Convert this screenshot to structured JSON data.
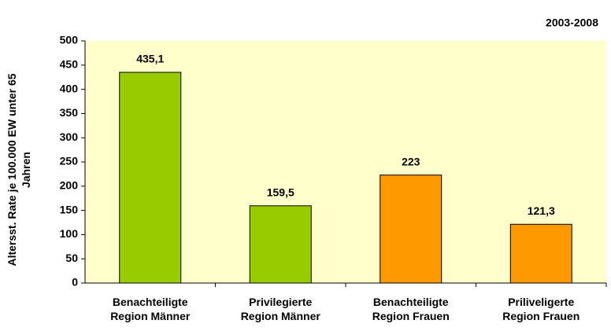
{
  "chart_data": {
    "type": "bar",
    "subtitle": "2003-2008",
    "y_label": "Altersst. Rate je 100.000 EW unter 65\nJahren",
    "categories": [
      "Benachteiligte\nRegion Männer",
      "Privilegierte\nRegion Männer",
      "Benachteiligte\nRegion Frauen",
      "Priliveligerte\nRegion Frauen"
    ],
    "values": [
      435.1,
      159.5,
      223,
      121.3
    ],
    "value_labels": [
      "435,1",
      "159,5",
      "223",
      "121,3"
    ],
    "colors": [
      "#99cc00",
      "#99cc00",
      "#ff9900",
      "#ff9900"
    ],
    "plot_background": "#ffffcc",
    "ylim": [
      0,
      500
    ],
    "yticks": [
      0,
      50,
      100,
      150,
      200,
      250,
      300,
      350,
      400,
      450,
      500
    ],
    "grid": false
  }
}
